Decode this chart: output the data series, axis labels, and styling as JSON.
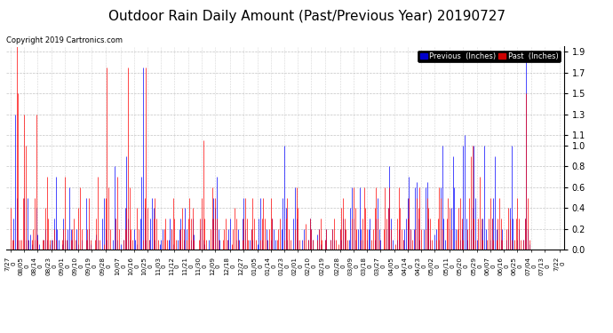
{
  "title": "Outdoor Rain Daily Amount (Past/Previous Year) 20190727",
  "copyright_text": "Copyright 2019 Cartronics.com",
  "legend_previous": "Previous  (Inches)",
  "legend_past": "Past  (Inches)",
  "legend_previous_bg": "#0000CC",
  "legend_past_bg": "#CC0000",
  "legend_previous_color": "#0000FF",
  "legend_past_color": "#FF0000",
  "background_color": "#FFFFFF",
  "plot_bg_color": "#FFFFFF",
  "grid_color": "#AAAAAA",
  "title_fontsize": 11,
  "tick_fontsize": 5.5,
  "copyright_fontsize": 6,
  "ylim": [
    0.0,
    1.95
  ],
  "yticks": [
    0.0,
    0.2,
    0.4,
    0.6,
    0.8,
    1.0,
    1.1,
    1.3,
    1.5,
    1.7,
    1.9
  ],
  "n_points": 366,
  "x_labels_top": [
    "7/27",
    "08/05",
    "08/14",
    "08/23",
    "09/01",
    "09/10",
    "09/19",
    "09/28",
    "10/07",
    "10/16",
    "10/25",
    "11/03",
    "11/12",
    "11/21",
    "11/30",
    "12/09",
    "12/18",
    "12/27",
    "01/05",
    "01/14",
    "01/23",
    "02/01",
    "02/10",
    "02/19",
    "02/28",
    "03/09",
    "03/18",
    "03/27",
    "04/05",
    "04/14",
    "04/23",
    "05/02",
    "05/11",
    "05/20",
    "05/29",
    "06/07",
    "06/16",
    "06/25",
    "07/04",
    "07/13",
    "7/22"
  ],
  "x_labels_bot": [
    "0",
    "0",
    "0",
    "0",
    "0",
    "0",
    "0",
    "0",
    "0",
    "0",
    "0",
    "0",
    "0",
    "0",
    "0",
    "0",
    "0",
    "0",
    "0",
    "0",
    "0",
    "0",
    "0",
    "0",
    "0",
    "0",
    "0",
    "0",
    "0",
    "0",
    "0",
    "0",
    "0",
    "0",
    "0",
    "0",
    "0",
    "0",
    "0",
    "0",
    "0"
  ],
  "previous_year_data": [
    0.0,
    0.0,
    0.3,
    1.3,
    0.5,
    0.1,
    0.0,
    0.0,
    0.0,
    0.5,
    0.1,
    0.5,
    0.1,
    0.15,
    0.05,
    0.0,
    0.1,
    0.4,
    0.15,
    0.05,
    0.0,
    0.0,
    0.1,
    0.2,
    0.1,
    0.0,
    0.05,
    0.1,
    0.0,
    0.3,
    0.7,
    0.2,
    0.1,
    0.0,
    0.05,
    0.3,
    0.1,
    0.0,
    0.2,
    0.6,
    0.2,
    0.1,
    0.0,
    0.0,
    0.2,
    0.05,
    0.0,
    0.1,
    0.0,
    0.0,
    0.5,
    0.1,
    0.2,
    0.05,
    0.0,
    0.0,
    0.0,
    0.15,
    0.1,
    0.0,
    0.0,
    0.3,
    0.5,
    0.2,
    0.1,
    0.0,
    0.0,
    0.0,
    0.1,
    0.8,
    0.3,
    0.1,
    0.0,
    0.05,
    0.0,
    0.1,
    0.4,
    0.9,
    0.3,
    0.1,
    0.0,
    0.0,
    0.2,
    0.1,
    0.05,
    0.0,
    0.3,
    0.7,
    1.75,
    0.4,
    0.1,
    0.0,
    0.1,
    0.3,
    0.5,
    0.4,
    0.1,
    0.0,
    0.0,
    0.05,
    0.1,
    0.2,
    0.0,
    0.0,
    0.0,
    0.1,
    0.3,
    0.2,
    0.05,
    0.0,
    0.0,
    0.1,
    0.2,
    0.3,
    0.0,
    0.1,
    0.4,
    0.2,
    0.0,
    0.0,
    0.1,
    0.3,
    0.15,
    0.0,
    0.0,
    0.0,
    0.2,
    0.3,
    0.1,
    0.05,
    0.0,
    0.0,
    0.1,
    0.0,
    0.3,
    0.5,
    0.4,
    0.7,
    0.2,
    0.1,
    0.0,
    0.0,
    0.0,
    0.0,
    0.1,
    0.2,
    0.3,
    0.0,
    0.0,
    0.0,
    0.1,
    0.2,
    0.1,
    0.0,
    0.3,
    0.5,
    0.2,
    0.0,
    0.0,
    0.1,
    0.2,
    0.1,
    0.0,
    0.0,
    0.05,
    0.3,
    0.5,
    0.1,
    0.0,
    0.0,
    0.2,
    0.1,
    0.0,
    0.1,
    0.3,
    0.2,
    0.1,
    0.0,
    0.0,
    0.0,
    0.2,
    0.5,
    1.0,
    0.4,
    0.1,
    0.0,
    0.0,
    0.0,
    0.3,
    0.6,
    0.3,
    0.1,
    0.0,
    0.0,
    0.1,
    0.2,
    0.0,
    0.0,
    0.1,
    0.3,
    0.2,
    0.1,
    0.0,
    0.0,
    0.15,
    0.2,
    0.05,
    0.0,
    0.0,
    0.1,
    0.2,
    0.0,
    0.0,
    0.1,
    0.2,
    0.1,
    0.0,
    0.0,
    0.0,
    0.2,
    0.1,
    0.3,
    0.2,
    0.0,
    0.0,
    0.1,
    0.4,
    0.6,
    0.3,
    0.1,
    0.0,
    0.2,
    0.6,
    0.2,
    0.1,
    0.0,
    0.0,
    0.1,
    0.2,
    0.3,
    0.0,
    0.0,
    0.1,
    0.3,
    0.5,
    0.2,
    0.1,
    0.0,
    0.0,
    0.0,
    0.2,
    0.4,
    0.8,
    0.3,
    0.1,
    0.0,
    0.0,
    0.1,
    0.2,
    0.0,
    0.0,
    0.1,
    0.2,
    0.3,
    0.5,
    0.7,
    0.2,
    0.0,
    0.2,
    0.6,
    0.65,
    0.3,
    0.1,
    0.0,
    0.0,
    0.2,
    0.6,
    0.65,
    0.3,
    0.1,
    0.0,
    0.0,
    0.15,
    0.2,
    0.0,
    0.1,
    0.6,
    1.0,
    0.3,
    0.1,
    0.0,
    0.0,
    0.2,
    0.4,
    0.9,
    0.6,
    0.2,
    0.0,
    0.0,
    0.1,
    0.2,
    1.0,
    1.1,
    0.3,
    0.1,
    0.0,
    0.2,
    0.4,
    1.0,
    0.5,
    0.1,
    0.0,
    0.0,
    0.2,
    0.3,
    1.0,
    0.2,
    0.0,
    0.0,
    0.1,
    0.3,
    0.5,
    0.9,
    0.2,
    0.0,
    0.0,
    0.1,
    0.2,
    0.0,
    0.0,
    0.1,
    0.2,
    0.4,
    1.0,
    0.3,
    0.0,
    0.0,
    0.1,
    0.2,
    0.0,
    0.0,
    0.1,
    0.3,
    1.9,
    0.2,
    0.05,
    0.0,
    0.0,
    0.0,
    0.0,
    0.0,
    0.0,
    0.0,
    0.0,
    0.0,
    0.0,
    0.0,
    0.0,
    0.0,
    0.0,
    0.0,
    0.0,
    0.0,
    0.0,
    0.0,
    0.0
  ],
  "past_year_data": [
    0.4,
    0.1,
    0.1,
    0.0,
    2.0,
    1.5,
    0.1,
    0.1,
    0.5,
    1.3,
    1.0,
    0.1,
    0.0,
    0.0,
    0.1,
    0.2,
    0.5,
    1.3,
    0.1,
    0.0,
    0.0,
    0.1,
    0.1,
    0.4,
    0.7,
    0.3,
    0.1,
    0.0,
    0.1,
    0.2,
    0.1,
    0.0,
    0.0,
    0.0,
    0.1,
    0.2,
    0.7,
    0.1,
    0.0,
    0.0,
    0.1,
    0.2,
    0.3,
    0.1,
    0.0,
    0.4,
    0.6,
    0.2,
    0.0,
    0.0,
    0.1,
    0.2,
    0.5,
    0.1,
    0.0,
    0.0,
    0.1,
    0.3,
    0.7,
    0.1,
    0.0,
    0.0,
    0.05,
    0.5,
    1.75,
    0.6,
    0.2,
    0.0,
    0.0,
    0.0,
    0.3,
    0.7,
    0.2,
    0.0,
    0.0,
    0.1,
    0.2,
    0.4,
    1.75,
    0.6,
    0.2,
    0.1,
    0.0,
    0.0,
    0.4,
    0.2,
    0.0,
    0.0,
    0.1,
    0.5,
    1.75,
    0.4,
    0.1,
    0.0,
    0.0,
    0.3,
    0.5,
    0.3,
    0.1,
    0.0,
    0.0,
    0.1,
    0.2,
    0.3,
    0.1,
    0.0,
    0.0,
    0.2,
    0.5,
    0.3,
    0.1,
    0.0,
    0.1,
    0.2,
    0.4,
    0.2,
    0.0,
    0.1,
    0.3,
    0.5,
    0.3,
    0.4,
    0.1,
    0.0,
    0.0,
    0.1,
    0.3,
    0.5,
    1.05,
    0.3,
    0.1,
    0.0,
    0.0,
    0.2,
    0.6,
    0.3,
    0.5,
    0.3,
    0.1,
    0.0,
    0.0,
    0.1,
    0.2,
    0.3,
    0.1,
    0.0,
    0.0,
    0.05,
    0.2,
    0.4,
    0.3,
    0.1,
    0.0,
    0.0,
    0.1,
    0.3,
    0.5,
    0.3,
    0.1,
    0.0,
    0.2,
    0.5,
    0.3,
    0.1,
    0.0,
    0.0,
    0.1,
    0.3,
    0.5,
    0.3,
    0.1,
    0.0,
    0.2,
    0.5,
    0.3,
    0.0,
    0.0,
    0.1,
    0.2,
    0.3,
    0.0,
    0.0,
    0.1,
    0.3,
    0.5,
    0.2,
    0.1,
    0.0,
    0.0,
    0.2,
    0.6,
    0.4,
    0.1,
    0.0,
    0.0,
    0.1,
    0.25,
    0.0,
    0.1,
    0.3,
    0.2,
    0.1,
    0.0,
    0.0,
    0.1,
    0.2,
    0.3,
    0.1,
    0.0,
    0.1,
    0.2,
    0.0,
    0.0,
    0.1,
    0.2,
    0.3,
    0.1,
    0.0,
    0.05,
    0.2,
    0.4,
    0.5,
    0.3,
    0.2,
    0.1,
    0.0,
    0.0,
    0.3,
    0.6,
    0.4,
    0.2,
    0.0,
    0.0,
    0.1,
    0.3,
    0.6,
    0.4,
    0.2,
    0.0,
    0.0,
    0.1,
    0.2,
    0.4,
    0.6,
    0.3,
    0.1,
    0.0,
    0.0,
    0.2,
    0.6,
    0.3,
    0.4,
    0.6,
    0.2,
    0.0,
    0.0,
    0.05,
    0.3,
    0.6,
    0.4,
    0.2,
    0.1,
    0.0,
    0.0,
    0.3,
    0.5,
    0.2,
    0.1,
    0.0,
    0.2,
    0.5,
    0.4,
    0.6,
    0.2,
    0.0,
    0.0,
    0.2,
    0.5,
    0.4,
    0.3,
    0.1,
    0.0,
    0.0,
    0.1,
    0.3,
    0.6,
    0.5,
    0.2,
    0.0,
    0.0,
    0.3,
    0.5,
    0.4,
    0.2,
    0.0,
    0.0,
    0.1,
    0.2,
    0.4,
    0.5,
    0.3,
    0.1,
    0.0,
    0.0,
    0.2,
    0.5,
    0.9,
    1.0,
    0.3,
    0.1,
    0.0,
    0.3,
    0.7,
    0.3,
    0.1,
    0.0,
    0.0,
    0.1,
    0.3,
    0.5,
    0.3,
    0.1,
    0.0,
    0.1,
    0.3,
    0.5,
    0.3,
    0.1,
    0.0,
    0.0,
    0.2,
    0.4,
    0.3,
    0.1,
    0.0,
    0.1,
    0.3,
    0.5,
    0.3,
    0.1,
    0.0,
    0.1,
    0.3,
    1.5,
    0.5,
    0.1,
    0.0,
    0.0,
    0.0,
    0.0,
    0.0,
    0.0,
    0.0,
    0.0,
    0.0,
    0.0,
    0.0,
    0.0,
    0.0,
    0.0,
    0.0,
    0.0,
    0.0,
    0.0,
    0.0,
    0.0
  ]
}
